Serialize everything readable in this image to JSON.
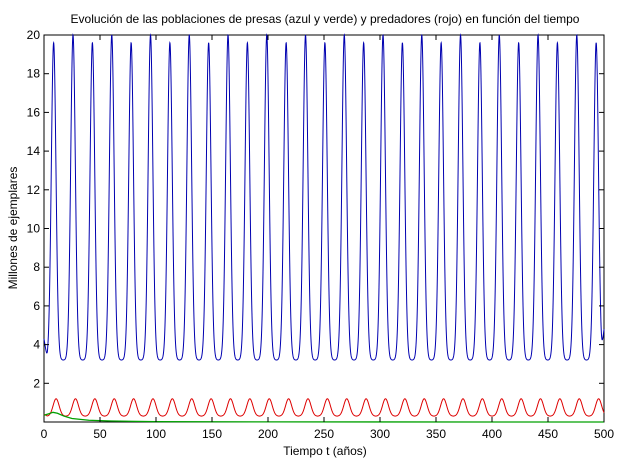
{
  "chart_data": {
    "type": "line",
    "title": "Evolución de las poblaciones de presas (azul y verde) y predadores (rojo) en función del tiempo",
    "xlabel": "Tiempo t (años)",
    "ylabel": "Millones de ejemplares",
    "xlim": [
      0,
      500
    ],
    "ylim": [
      0,
      20
    ],
    "xticks": [
      0,
      50,
      100,
      150,
      200,
      250,
      300,
      350,
      400,
      450,
      500
    ],
    "yticks": [
      2,
      4,
      6,
      8,
      10,
      12,
      14,
      16,
      18,
      20
    ],
    "grid": false,
    "legend": "none",
    "series": [
      {
        "color": "#0000b0",
        "cycle_count": 29,
        "period": 17.3,
        "peak_values": [
          19.6,
          20
        ],
        "trough_value": 3.2,
        "initial_value": 4.3,
        "final_value": 4.8
      },
      {
        "color": "#dd0000",
        "period": 17.3,
        "peak_value": 1.2,
        "trough_value": 0.3,
        "initial_value": 0.4
      },
      {
        "color": "#00a000",
        "x": [
          0,
          4,
          8,
          12,
          18,
          25,
          40,
          60,
          100,
          200,
          300,
          400,
          500
        ],
        "values": [
          0.35,
          0.42,
          0.5,
          0.45,
          0.3,
          0.18,
          0.09,
          0.05,
          0.02,
          0.005,
          0.002,
          0.001,
          0.0005
        ]
      }
    ]
  }
}
